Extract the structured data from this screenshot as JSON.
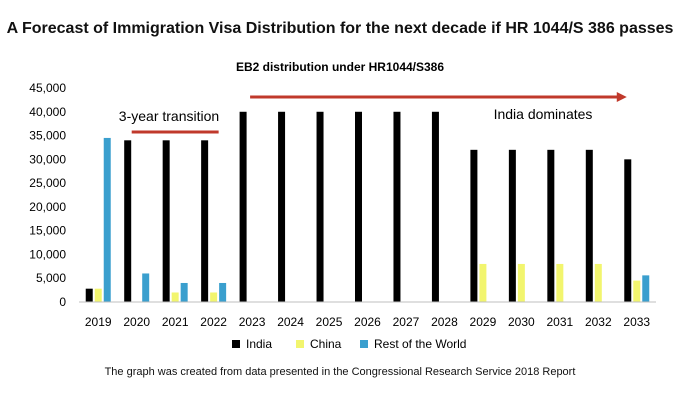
{
  "page": {
    "main_title": "A Forecast of Immigration Visa Distribution for the next decade if HR 1044/S 386 passes",
    "footnote": "The graph was created from data presented in the Congressional Research Service 2018 Report"
  },
  "chart_data": {
    "type": "bar",
    "title": "EB2 distribution under HR1044/S386",
    "xlabel": "",
    "ylabel": "",
    "ylim": [
      0,
      45000
    ],
    "yticks": [
      "0",
      "5,000",
      "10,000",
      "15,000",
      "20,000",
      "25,000",
      "30,000",
      "35,000",
      "40,000",
      "45,000"
    ],
    "categories": [
      "2019",
      "2020",
      "2021",
      "2022",
      "2023",
      "2024",
      "2025",
      "2026",
      "2027",
      "2028",
      "2029",
      "2030",
      "2031",
      "2032",
      "2033"
    ],
    "series": [
      {
        "name": "India",
        "color": "#000000",
        "values": [
          2800,
          34000,
          34000,
          34000,
          40000,
          40000,
          40000,
          40000,
          40000,
          40000,
          32000,
          32000,
          32000,
          32000,
          30000
        ]
      },
      {
        "name": "China",
        "color": "#f2f56e",
        "values": [
          2800,
          0,
          2000,
          2000,
          0,
          0,
          0,
          0,
          0,
          0,
          8000,
          8000,
          8000,
          8000,
          4500
        ]
      },
      {
        "name": "Rest of the World",
        "color": "#3a9fce",
        "values": [
          34500,
          6000,
          4000,
          4000,
          0,
          0,
          0,
          0,
          0,
          0,
          0,
          0,
          0,
          0,
          5600
        ]
      }
    ],
    "grid": false,
    "legend_position": "bottom",
    "annotations": [
      {
        "text": "3-year transition",
        "from_category": "2020",
        "to_category": "2022",
        "arrow_color": "#c0392b"
      },
      {
        "text": "India dominates",
        "from_category": "2023",
        "to_category": "2033",
        "arrow_color": "#c0392b"
      }
    ]
  }
}
